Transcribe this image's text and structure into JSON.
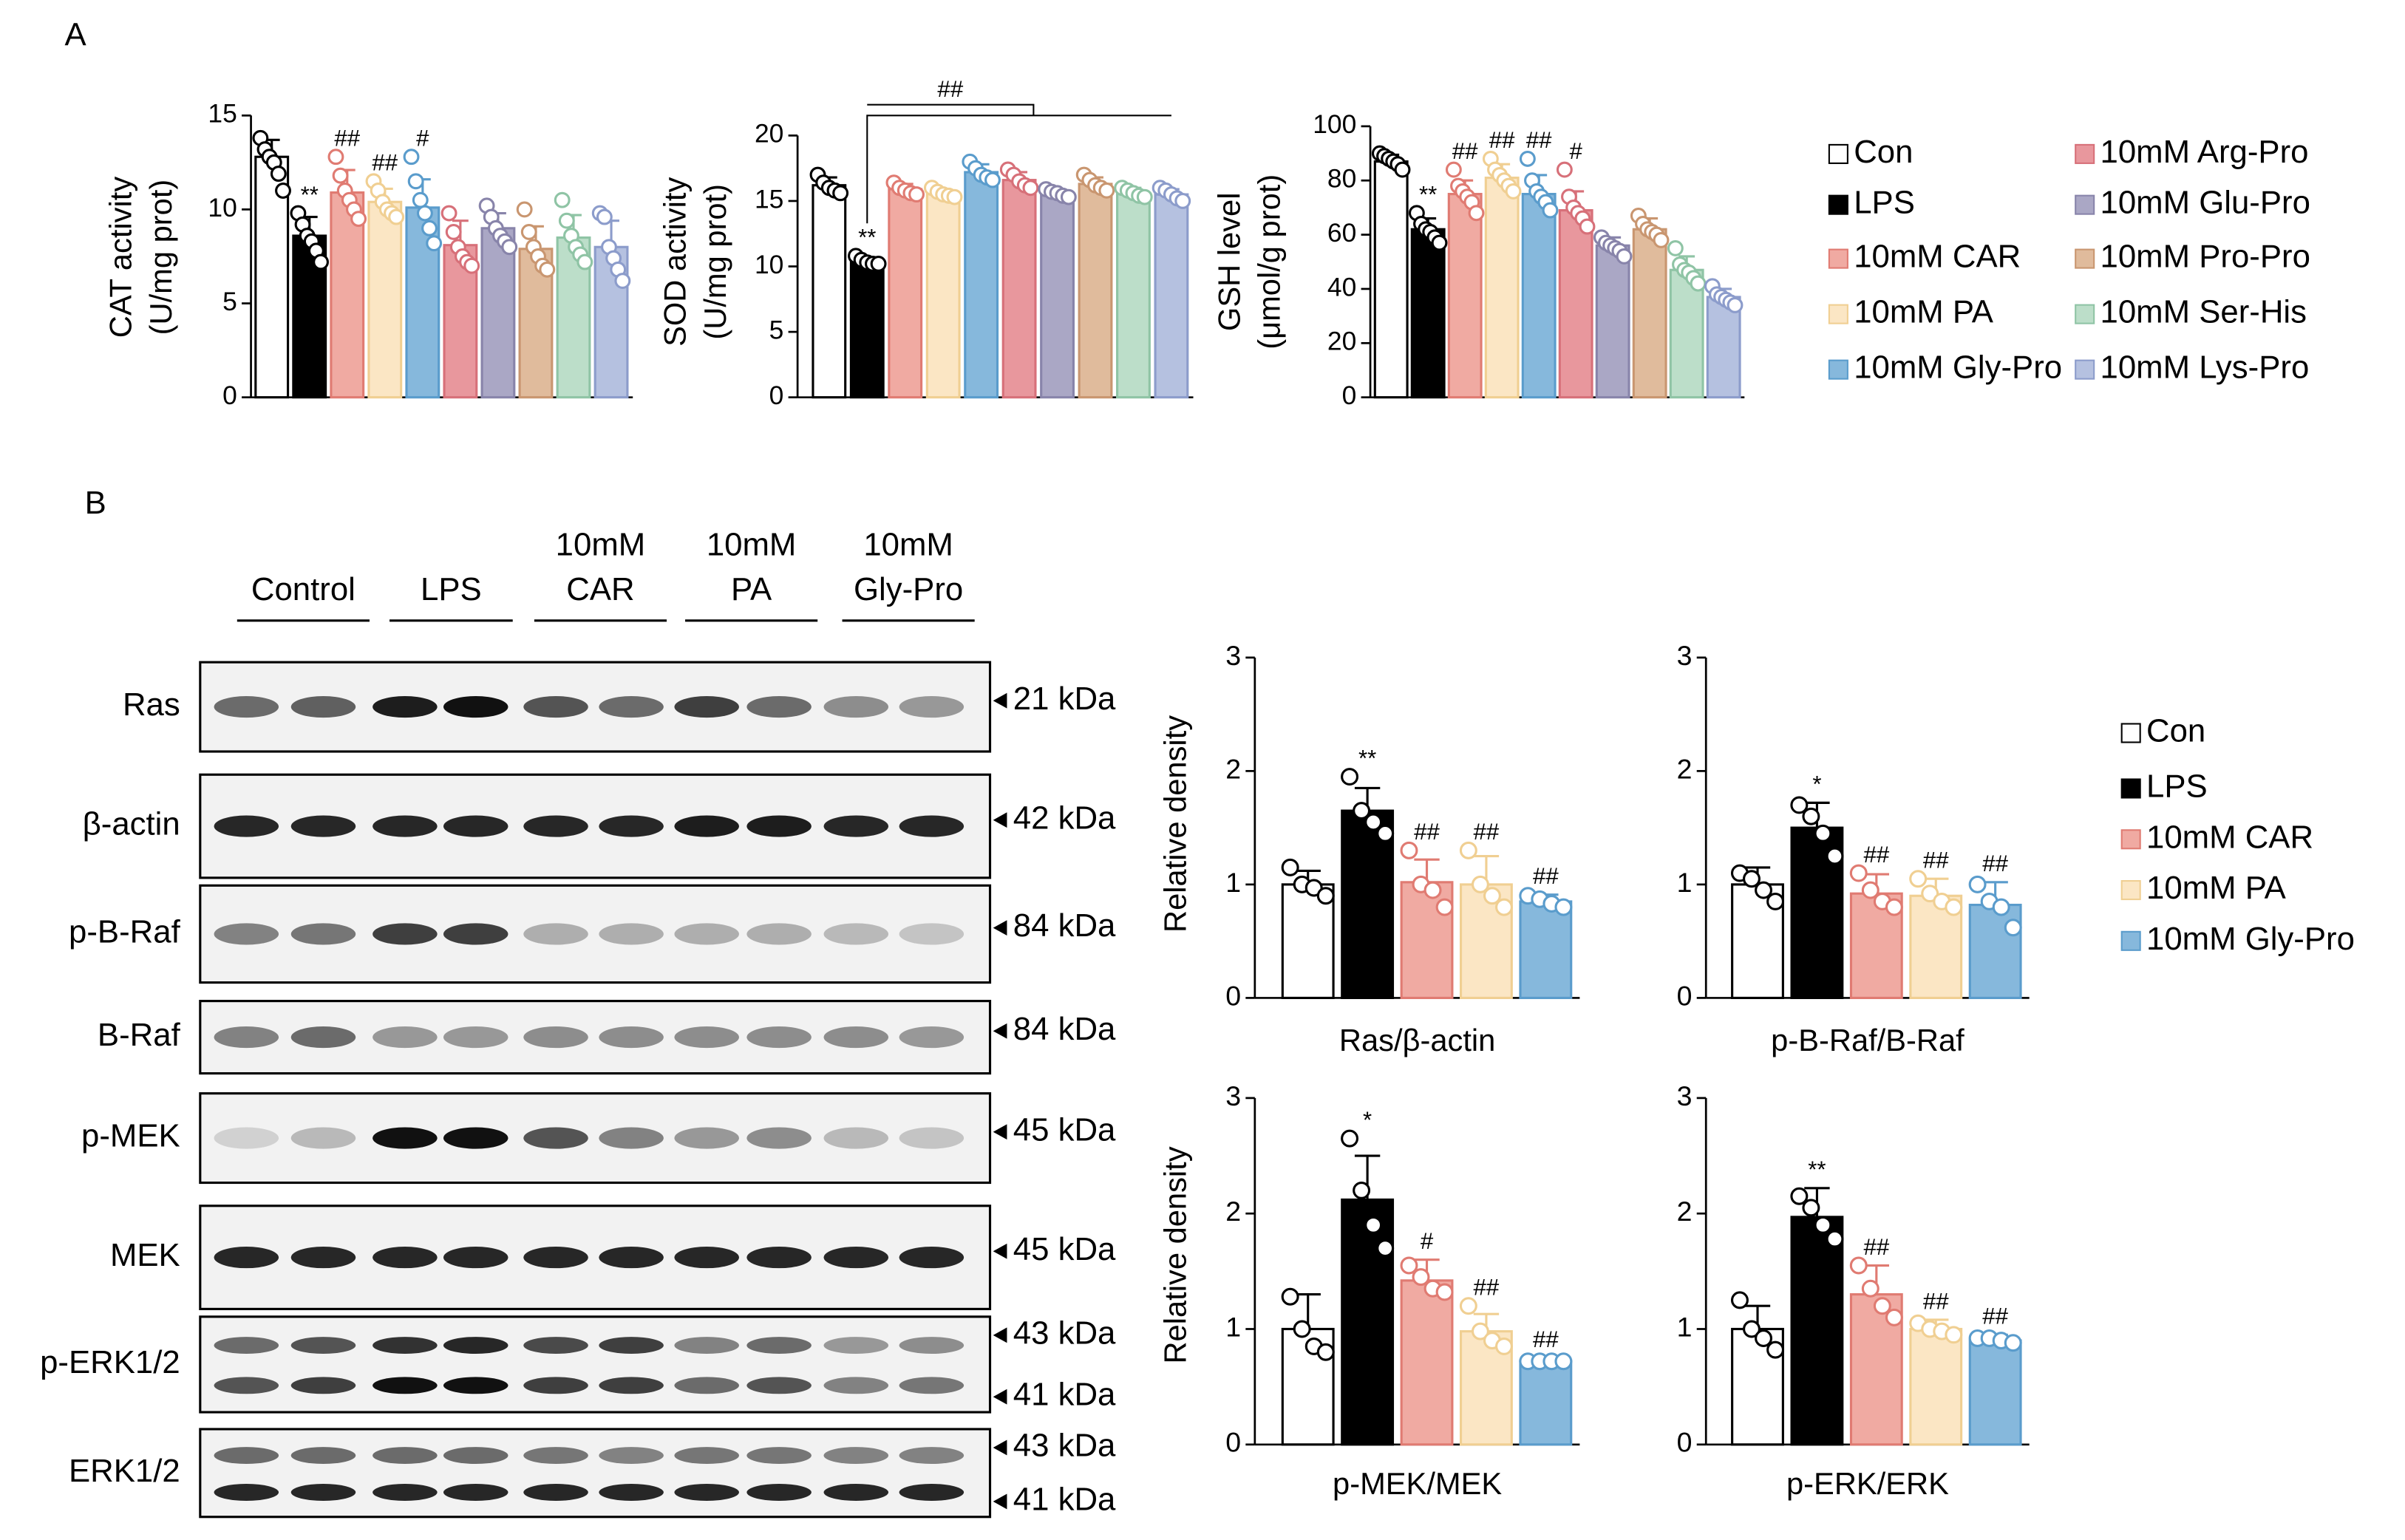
{
  "panel_labels": [
    "A",
    "B"
  ],
  "legend_a": [
    {
      "name": "Con",
      "color": "#ffffff",
      "edge": "#000000"
    },
    {
      "name": "LPS",
      "color": "#000000",
      "edge": "#000000"
    },
    {
      "name": "10mM CAR",
      "color": "#f0aaa2",
      "edge": "#e07b72"
    },
    {
      "name": "10mM PA",
      "color": "#fbe6c4",
      "edge": "#f0cf92"
    },
    {
      "name": "10mM Gly-Pro",
      "color": "#86b8dc",
      "edge": "#5a9ccc"
    },
    {
      "name": "10mM Arg-Pro",
      "color": "#e8979d",
      "edge": "#d77079"
    },
    {
      "name": "10mM Glu-Pro",
      "color": "#aaa7c5",
      "edge": "#8884aa"
    },
    {
      "name": "10mM Pro-Pro",
      "color": "#e0bb9c",
      "edge": "#c99670"
    },
    {
      "name": "10mM Ser-His",
      "color": "#bcdec9",
      "edge": "#8fc4a5"
    },
    {
      "name": "10mM Lys-Pro",
      "color": "#b5c1e0",
      "edge": "#8c9ccb"
    }
  ],
  "legend_b": [
    {
      "name": "Con",
      "color": "#ffffff",
      "edge": "#000000"
    },
    {
      "name": "LPS",
      "color": "#000000",
      "edge": "#000000"
    },
    {
      "name": "10mM CAR",
      "color": "#f0aaa2",
      "edge": "#e07b72"
    },
    {
      "name": "10mM PA",
      "color": "#fbe6c4",
      "edge": "#f0cf92"
    },
    {
      "name": "10mM Gly-Pro",
      "color": "#86b8dc",
      "edge": "#5a9ccc"
    }
  ],
  "chart_data": [
    {
      "type": "bar",
      "ylabel": [
        "CAT activity",
        "(U/mg prot)"
      ],
      "values": [
        12.8,
        8.6,
        10.9,
        10.4,
        10.1,
        8.1,
        9.0,
        7.9,
        8.5,
        8.0
      ],
      "errors": [
        0.9,
        1.0,
        1.2,
        0.7,
        1.5,
        1.3,
        0.8,
        1.2,
        1.2,
        1.4
      ],
      "points": [
        [
          13.8,
          13.2,
          12.8,
          12.5,
          11.9,
          11.0
        ],
        [
          9.8,
          9.2,
          8.6,
          8.3,
          7.8,
          7.2
        ],
        [
          12.8,
          11.8,
          11.0,
          10.5,
          10.0,
          9.5
        ],
        [
          11.5,
          11.0,
          10.4,
          10.0,
          9.8,
          9.6
        ],
        [
          12.8,
          11.5,
          10.5,
          9.8,
          9.0,
          8.2
        ],
        [
          9.8,
          8.8,
          8.0,
          7.5,
          7.2,
          7.0
        ],
        [
          10.2,
          9.6,
          9.0,
          8.6,
          8.3,
          8.0
        ],
        [
          10.0,
          8.8,
          8.0,
          7.5,
          7.0,
          6.8
        ],
        [
          10.5,
          9.4,
          8.6,
          8.0,
          7.6,
          7.2
        ],
        [
          9.8,
          9.6,
          8.0,
          7.4,
          6.8,
          6.2
        ]
      ],
      "annotations": [
        null,
        "**",
        "##",
        "##",
        "#",
        null,
        null,
        null,
        null,
        null
      ],
      "ylim": [
        0,
        15
      ],
      "yticks": [
        0,
        5,
        10,
        15
      ]
    },
    {
      "type": "bar",
      "ylabel": [
        "SOD activity",
        "(U/mg prot)"
      ],
      "values": [
        16.2,
        10.4,
        15.9,
        15.6,
        17.2,
        16.6,
        15.6,
        16.3,
        15.6,
        15.5
      ],
      "errors": [
        0.6,
        0.3,
        0.4,
        0.3,
        0.6,
        0.6,
        0.3,
        0.5,
        0.4,
        0.4
      ],
      "points": [
        [
          17.0,
          16.4,
          16.0,
          15.8,
          15.6
        ],
        [
          10.8,
          10.5,
          10.3,
          10.2,
          10.2
        ],
        [
          16.4,
          16.0,
          15.8,
          15.6,
          15.5
        ],
        [
          16.0,
          15.7,
          15.5,
          15.4,
          15.3
        ],
        [
          18.0,
          17.5,
          17.0,
          16.8,
          16.6
        ],
        [
          17.4,
          17.0,
          16.5,
          16.2,
          16.0
        ],
        [
          15.9,
          15.7,
          15.6,
          15.4,
          15.3
        ],
        [
          17.0,
          16.6,
          16.2,
          16.0,
          15.8
        ],
        [
          16.0,
          15.8,
          15.6,
          15.4,
          15.3
        ],
        [
          16.0,
          15.8,
          15.5,
          15.2,
          15.0
        ]
      ],
      "annotations": [
        null,
        "**",
        null,
        null,
        null,
        null,
        null,
        null,
        null,
        null
      ],
      "bracket_annotation": "##",
      "ylim": [
        0,
        20
      ],
      "yticks": [
        0,
        5,
        10,
        15,
        20
      ]
    },
    {
      "type": "bar",
      "ylabel": [
        "GSH level",
        "(μmol/g prot)"
      ],
      "values": [
        87,
        62,
        75,
        81,
        75,
        69,
        56,
        62,
        47,
        37
      ],
      "errors": [
        2.5,
        4,
        5,
        5,
        7,
        7,
        3,
        4,
        5,
        3
      ],
      "points": [
        [
          90,
          89,
          88,
          87,
          86,
          84
        ],
        [
          68,
          64,
          62,
          61,
          59,
          57
        ],
        [
          84,
          78,
          76,
          74,
          72,
          68
        ],
        [
          88,
          84,
          82,
          80,
          78,
          76
        ],
        [
          88,
          80,
          76,
          74,
          72,
          69
        ],
        [
          84,
          74,
          70,
          68,
          66,
          63
        ],
        [
          59,
          57,
          56,
          55,
          54,
          52
        ],
        [
          67,
          64,
          62,
          61,
          60,
          58
        ],
        [
          55,
          49,
          47,
          46,
          44,
          42
        ],
        [
          41,
          38,
          37,
          36,
          35,
          34
        ]
      ],
      "annotations": [
        null,
        "**",
        "##",
        "##",
        "##",
        "#",
        null,
        null,
        null,
        null
      ],
      "ylim": [
        0,
        100
      ],
      "yticks": [
        0,
        20,
        40,
        60,
        80,
        100
      ]
    },
    {
      "type": "bar",
      "ylabel": [
        "Relative density"
      ],
      "xlabel": "Ras/β-actin",
      "values": [
        1.0,
        1.65,
        1.02,
        1.0,
        0.85
      ],
      "errors": [
        0.12,
        0.2,
        0.2,
        0.25,
        0.06
      ],
      "points": [
        [
          1.15,
          1.0,
          0.97,
          0.9
        ],
        [
          1.95,
          1.65,
          1.55,
          1.45
        ],
        [
          1.3,
          1.0,
          0.95,
          0.8
        ],
        [
          1.3,
          1.0,
          0.9,
          0.8
        ],
        [
          0.9,
          0.87,
          0.83,
          0.8
        ]
      ],
      "annotations": [
        null,
        "**",
        "##",
        "##",
        "##"
      ],
      "ylim": [
        0,
        3
      ],
      "yticks": [
        0,
        1,
        2,
        3
      ]
    },
    {
      "type": "bar",
      "xlabel": "p-B-Raf/B-Raf",
      "values": [
        1.0,
        1.5,
        0.92,
        0.9,
        0.82
      ],
      "errors": [
        0.15,
        0.22,
        0.17,
        0.15,
        0.2
      ],
      "points": [
        [
          1.1,
          1.05,
          0.95,
          0.85
        ],
        [
          1.7,
          1.6,
          1.45,
          1.25
        ],
        [
          1.1,
          0.95,
          0.85,
          0.8
        ],
        [
          1.05,
          0.92,
          0.85,
          0.8
        ],
        [
          1.0,
          0.85,
          0.8,
          0.62
        ]
      ],
      "annotations": [
        null,
        "*",
        "##",
        "##",
        "##"
      ],
      "ylim": [
        0,
        3
      ],
      "yticks": [
        0,
        1,
        2,
        3
      ]
    },
    {
      "type": "bar",
      "ylabel": [
        "Relative density"
      ],
      "xlabel": "p-MEK/MEK",
      "values": [
        1.0,
        2.12,
        1.42,
        0.98,
        0.72
      ],
      "errors": [
        0.3,
        0.38,
        0.18,
        0.15,
        0.03
      ],
      "points": [
        [
          1.28,
          1.0,
          0.85,
          0.8
        ],
        [
          2.65,
          2.2,
          1.9,
          1.7
        ],
        [
          1.55,
          1.45,
          1.35,
          1.32
        ],
        [
          1.2,
          0.98,
          0.9,
          0.85
        ],
        [
          0.72,
          0.72,
          0.72,
          0.72
        ]
      ],
      "annotations": [
        null,
        "*",
        "#",
        "##",
        "##"
      ],
      "ylim": [
        0,
        3
      ],
      "yticks": [
        0,
        1,
        2,
        3
      ]
    },
    {
      "type": "bar",
      "xlabel": "p-ERK/ERK",
      "values": [
        1.0,
        1.97,
        1.3,
        1.0,
        0.9
      ],
      "errors": [
        0.2,
        0.25,
        0.25,
        0.08,
        0.05
      ],
      "points": [
        [
          1.25,
          1.0,
          0.92,
          0.82
        ],
        [
          2.15,
          2.05,
          1.9,
          1.78
        ],
        [
          1.55,
          1.35,
          1.2,
          1.1
        ],
        [
          1.05,
          1.0,
          0.98,
          0.95
        ],
        [
          0.92,
          0.92,
          0.9,
          0.88
        ]
      ],
      "annotations": [
        null,
        "**",
        "##",
        "##",
        "##"
      ],
      "ylim": [
        0,
        3
      ],
      "yticks": [
        0,
        1,
        2,
        3
      ]
    }
  ],
  "blot": {
    "groups": [
      [
        "Control"
      ],
      [
        "LPS"
      ],
      [
        "10mM",
        "CAR"
      ],
      [
        "10mM",
        "PA"
      ],
      [
        "10mM",
        "Gly-Pro"
      ]
    ],
    "rows": [
      {
        "label": "Ras",
        "kda": [
          "21 kDa"
        ]
      },
      {
        "label": "β-actin",
        "kda": [
          "42 kDa"
        ]
      },
      {
        "label": "p-B-Raf",
        "kda": [
          "84 kDa"
        ]
      },
      {
        "label": "B-Raf",
        "kda": [
          "84 kDa"
        ]
      },
      {
        "label": "p-MEK",
        "kda": [
          "45 kDa"
        ]
      },
      {
        "label": "MEK",
        "kda": [
          "45 kDa"
        ]
      },
      {
        "label": "p-ERK1/2",
        "kda": [
          "43 kDa",
          "41 kDa"
        ]
      },
      {
        "label": "ERK1/2",
        "kda": [
          "43 kDa",
          "41 kDa"
        ]
      }
    ]
  }
}
